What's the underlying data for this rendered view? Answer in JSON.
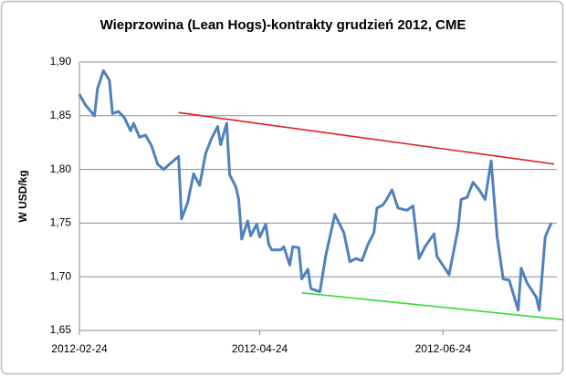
{
  "chart_data": {
    "type": "line",
    "title": "Wieprzowina (Lean Hogs)-kontrakty grudzień 2012, CME",
    "y_label": "W USD/kg",
    "xlim": [
      "2012-02-24",
      "2012-08-03"
    ],
    "xticks": [
      "2012-02-24",
      "2012-04-24",
      "2012-06-24"
    ],
    "ylim": [
      1.65,
      1.9
    ],
    "yticks": [
      {
        "value": 1.65,
        "label": "1,65"
      },
      {
        "value": 1.7,
        "label": "1,70"
      },
      {
        "value": 1.75,
        "label": "1,75"
      },
      {
        "value": 1.8,
        "label": "1,80"
      },
      {
        "value": 1.85,
        "label": "1,85"
      },
      {
        "value": 1.9,
        "label": "1,90"
      }
    ],
    "grid": true,
    "series": [
      {
        "color": "#4f81bd",
        "x": [
          "2012-02-24",
          "2012-02-26",
          "2012-02-29",
          "2012-03-01",
          "2012-03-03",
          "2012-03-05",
          "2012-03-06",
          "2012-03-08",
          "2012-03-10",
          "2012-03-12",
          "2012-03-13",
          "2012-03-15",
          "2012-03-17",
          "2012-03-19",
          "2012-03-21",
          "2012-03-23",
          "2012-03-25",
          "2012-03-28",
          "2012-03-29",
          "2012-03-31",
          "2012-04-02",
          "2012-04-04",
          "2012-04-06",
          "2012-04-08",
          "2012-04-10",
          "2012-04-11",
          "2012-04-13",
          "2012-04-14",
          "2012-04-16",
          "2012-04-17",
          "2012-04-18",
          "2012-04-20",
          "2012-04-21",
          "2012-04-23",
          "2012-04-24",
          "2012-04-26",
          "2012-04-27",
          "2012-04-28",
          "2012-05-01",
          "2012-05-02",
          "2012-05-04",
          "2012-05-05",
          "2012-05-07",
          "2012-05-08",
          "2012-05-10",
          "2012-05-11",
          "2012-05-14",
          "2012-05-16",
          "2012-05-19",
          "2012-05-22",
          "2012-05-24",
          "2012-05-26",
          "2012-05-28",
          "2012-05-30",
          "2012-06-01",
          "2012-06-02",
          "2012-06-04",
          "2012-06-05",
          "2012-06-07",
          "2012-06-09",
          "2012-06-12",
          "2012-06-14",
          "2012-06-16",
          "2012-06-18",
          "2012-06-21",
          "2012-06-22",
          "2012-06-26",
          "2012-06-29",
          "2012-06-30",
          "2012-07-02",
          "2012-07-04",
          "2012-07-06",
          "2012-07-08",
          "2012-07-10",
          "2012-07-12",
          "2012-07-14",
          "2012-07-16",
          "2012-07-19",
          "2012-07-20",
          "2012-07-22",
          "2012-07-25",
          "2012-07-26",
          "2012-07-28",
          "2012-07-30"
        ],
        "values": [
          1.87,
          1.86,
          1.85,
          1.875,
          1.892,
          1.883,
          1.852,
          1.854,
          1.848,
          1.836,
          1.843,
          1.83,
          1.832,
          1.822,
          1.805,
          1.8,
          1.805,
          1.812,
          1.754,
          1.769,
          1.796,
          1.785,
          1.815,
          1.829,
          1.84,
          1.823,
          1.843,
          1.795,
          1.784,
          1.772,
          1.735,
          1.752,
          1.738,
          1.749,
          1.737,
          1.749,
          1.73,
          1.725,
          1.725,
          1.728,
          1.711,
          1.728,
          1.727,
          1.698,
          1.707,
          1.689,
          1.686,
          1.72,
          1.758,
          1.741,
          1.714,
          1.717,
          1.715,
          1.73,
          1.741,
          1.764,
          1.767,
          1.771,
          1.781,
          1.764,
          1.762,
          1.766,
          1.717,
          1.728,
          1.74,
          1.719,
          1.702,
          1.745,
          1.772,
          1.774,
          1.788,
          1.781,
          1.772,
          1.808,
          1.737,
          1.698,
          1.697,
          1.669,
          1.708,
          1.694,
          1.681,
          1.669,
          1.737,
          1.75
        ]
      },
      {
        "color": "#e02020",
        "x": [
          "2012-03-28",
          "2012-07-31"
        ],
        "values": [
          1.853,
          1.805
        ]
      },
      {
        "color": "#33dd33",
        "x": [
          "2012-05-08",
          "2012-08-03"
        ],
        "values": [
          1.685,
          1.66
        ]
      }
    ]
  }
}
